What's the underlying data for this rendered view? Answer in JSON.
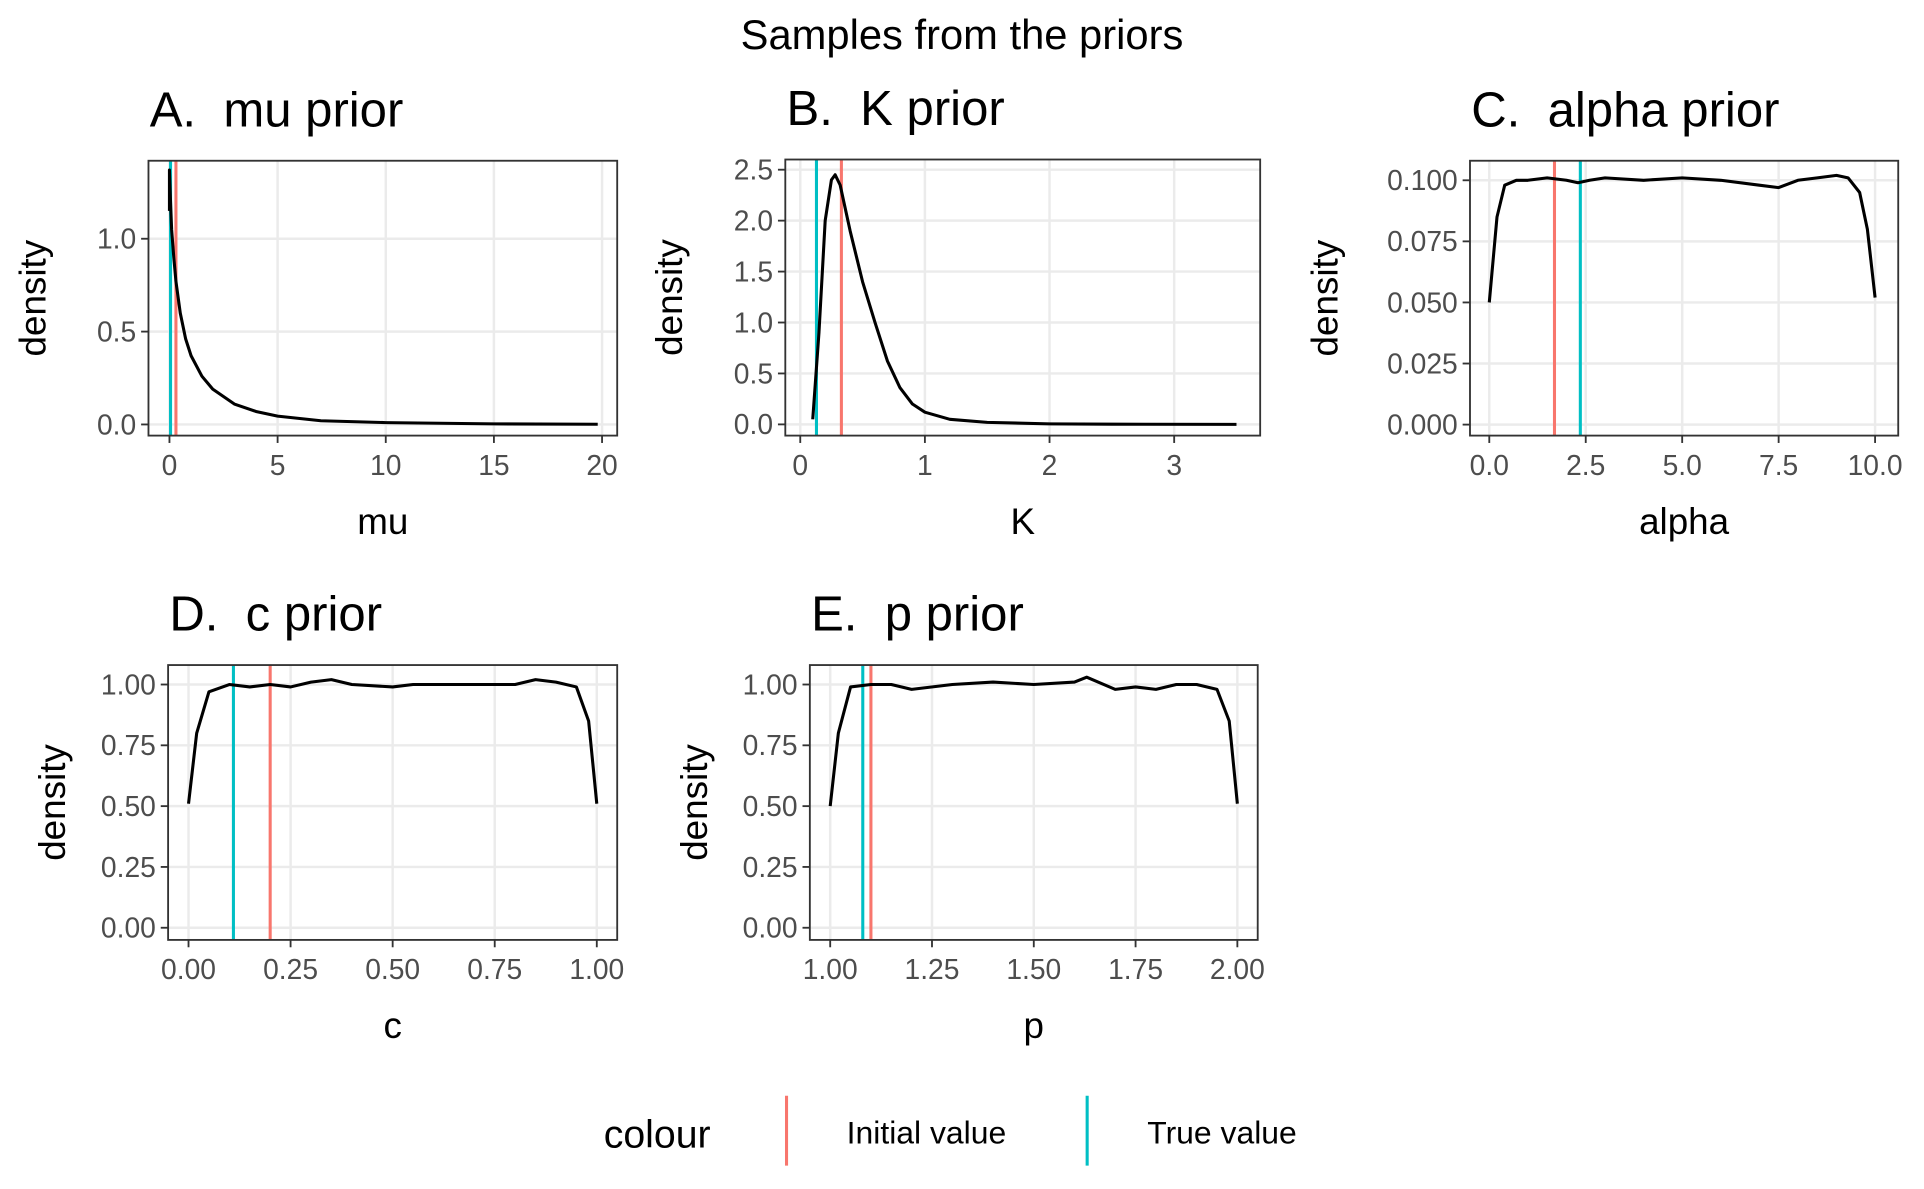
{
  "title": "Samples from the priors",
  "legend": {
    "title": "colour",
    "items": [
      {
        "name": "Initial value",
        "color": "#F8766D"
      },
      {
        "name": "True value",
        "color": "#00BFC4"
      }
    ]
  },
  "chart_data": [
    {
      "type": "line",
      "title": "A.  mu prior",
      "xlabel": "mu",
      "ylabel": "density",
      "color": "#000000",
      "x": [
        0,
        0,
        0.05,
        0.1,
        0.2,
        0.3,
        0.5,
        0.75,
        1,
        1.5,
        2,
        3,
        4,
        5,
        7,
        10,
        15,
        19.8
      ],
      "values": [
        1.15,
        1.37,
        1.2,
        1.05,
        0.9,
        0.77,
        0.6,
        0.46,
        0.37,
        0.26,
        0.19,
        0.11,
        0.07,
        0.045,
        0.02,
        0.01,
        0.003,
        0.001
      ],
      "initial_value": 0.3,
      "true_value": 0.05,
      "xlim": [
        -0.97,
        20.7
      ],
      "ylim": [
        -0.06,
        1.42
      ],
      "xticks": [
        0,
        5,
        10,
        15,
        20
      ],
      "yticks": [
        {
          "value": 0,
          "label": "0.0"
        },
        0.5,
        {
          "value": 1,
          "label": "1.0"
        }
      ],
      "grid": true
    },
    {
      "type": "line",
      "title": "B.  K prior",
      "xlabel": "K",
      "ylabel": "density",
      "color": "#000000",
      "x": [
        0.1,
        0.15,
        0.2,
        0.25,
        0.28,
        0.32,
        0.4,
        0.5,
        0.6,
        0.7,
        0.8,
        0.9,
        1,
        1.2,
        1.5,
        2,
        2.5,
        3.5
      ],
      "values": [
        0.05,
        0.9,
        2.0,
        2.4,
        2.45,
        2.35,
        1.9,
        1.4,
        1.0,
        0.62,
        0.36,
        0.2,
        0.12,
        0.05,
        0.02,
        0.005,
        0.002,
        0
      ],
      "initial_value": 0.33,
      "true_value": 0.13,
      "xlim": [
        -0.12,
        3.69
      ],
      "ylim": [
        -0.11,
        2.6
      ],
      "xticks": [
        0,
        1,
        2,
        3
      ],
      "yticks": [
        {
          "value": 0,
          "label": "0.0"
        },
        0.5,
        {
          "value": 1,
          "label": "1.0"
        },
        1.5,
        {
          "value": 2,
          "label": "2.0"
        },
        2.5
      ],
      "grid": true
    },
    {
      "type": "line",
      "title": "C.  alpha prior",
      "xlabel": "alpha",
      "ylabel": "density",
      "color": "#000000",
      "x": [
        0,
        0.2,
        0.4,
        0.7,
        1,
        1.5,
        2,
        2.3,
        2.6,
        3,
        4,
        5,
        6,
        7,
        7.5,
        8,
        8.5,
        9,
        9.3,
        9.6,
        9.8,
        10
      ],
      "values": [
        0.05,
        0.085,
        0.098,
        0.1,
        0.1,
        0.101,
        0.1,
        0.099,
        0.1,
        0.101,
        0.1,
        0.101,
        0.1,
        0.098,
        0.097,
        0.1,
        0.101,
        0.102,
        0.101,
        0.095,
        0.08,
        0.052
      ],
      "initial_value": 1.69,
      "true_value": 2.36,
      "xlim": [
        -0.5,
        10.6
      ],
      "ylim": [
        -0.0045,
        0.108
      ],
      "xticks": [
        {
          "value": 0,
          "label": "0.0"
        },
        2.5,
        {
          "value": 5,
          "label": "5.0"
        },
        7.5,
        {
          "value": 10,
          "label": "10.0"
        }
      ],
      "yticks": [
        {
          "value": 0,
          "label": "0.000"
        },
        0.025,
        {
          "value": 0.05,
          "label": "0.050"
        },
        0.075,
        {
          "value": 0.1,
          "label": "0.100"
        }
      ],
      "grid": true
    },
    {
      "type": "line",
      "title": "D.  c prior",
      "xlabel": "c",
      "ylabel": "density",
      "color": "#000000",
      "x": [
        0,
        0.02,
        0.05,
        0.1,
        0.15,
        0.2,
        0.25,
        0.3,
        0.35,
        0.4,
        0.5,
        0.55,
        0.6,
        0.7,
        0.8,
        0.85,
        0.9,
        0.95,
        0.98,
        1
      ],
      "values": [
        0.51,
        0.8,
        0.97,
        1.0,
        0.99,
        1.0,
        0.99,
        1.01,
        1.02,
        1.0,
        0.99,
        1.0,
        1.0,
        1.0,
        1.0,
        1.02,
        1.01,
        0.99,
        0.85,
        0.51
      ],
      "initial_value": 0.2,
      "true_value": 0.11,
      "xlim": [
        -0.05,
        1.05
      ],
      "ylim": [
        -0.05,
        1.08
      ],
      "xticks": [
        {
          "value": 0,
          "label": "0.00"
        },
        0.25,
        {
          "value": 0.5,
          "label": "0.50"
        },
        0.75,
        {
          "value": 1,
          "label": "1.00"
        }
      ],
      "yticks": [
        {
          "value": 0,
          "label": "0.00"
        },
        0.25,
        {
          "value": 0.5,
          "label": "0.50"
        },
        0.75,
        {
          "value": 1,
          "label": "1.00"
        }
      ],
      "grid": true
    },
    {
      "type": "line",
      "title": "E.  p prior",
      "xlabel": "p",
      "ylabel": "density",
      "color": "#000000",
      "x": [
        1,
        1.02,
        1.05,
        1.1,
        1.15,
        1.2,
        1.3,
        1.4,
        1.5,
        1.6,
        1.63,
        1.7,
        1.75,
        1.8,
        1.85,
        1.9,
        1.95,
        1.98,
        2
      ],
      "values": [
        0.5,
        0.8,
        0.99,
        1.0,
        1.0,
        0.98,
        1.0,
        1.01,
        1.0,
        1.01,
        1.03,
        0.98,
        0.99,
        0.98,
        1.0,
        1.0,
        0.98,
        0.85,
        0.51
      ],
      "initial_value": 1.1,
      "true_value": 1.08,
      "xlim": [
        0.95,
        2.05
      ],
      "ylim": [
        -0.05,
        1.08
      ],
      "xticks": [
        {
          "value": 1,
          "label": "1.00"
        },
        1.25,
        {
          "value": 1.5,
          "label": "1.50"
        },
        1.75,
        {
          "value": 2,
          "label": "2.00"
        }
      ],
      "yticks": [
        {
          "value": 0,
          "label": "0.00"
        },
        0.25,
        {
          "value": 0.5,
          "label": "0.50"
        },
        0.75,
        {
          "value": 1,
          "label": "1.00"
        }
      ],
      "grid": true
    }
  ]
}
